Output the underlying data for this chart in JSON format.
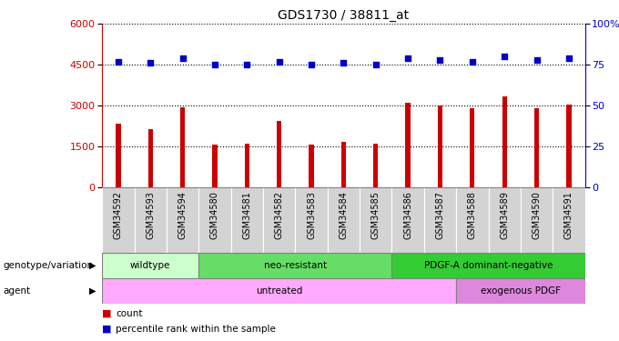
{
  "title": "GDS1730 / 38811_at",
  "samples": [
    "GSM34592",
    "GSM34593",
    "GSM34594",
    "GSM34580",
    "GSM34581",
    "GSM34582",
    "GSM34583",
    "GSM34584",
    "GSM34585",
    "GSM34586",
    "GSM34587",
    "GSM34588",
    "GSM34589",
    "GSM34590",
    "GSM34591"
  ],
  "counts": [
    2350,
    2150,
    2950,
    1580,
    1620,
    2450,
    1580,
    1680,
    1600,
    3100,
    3000,
    2920,
    3350,
    2900,
    3050
  ],
  "percentiles": [
    77,
    76,
    79,
    75,
    75,
    77,
    75,
    76,
    75,
    79,
    78,
    77,
    80,
    78,
    79
  ],
  "ylim_left": [
    0,
    6000
  ],
  "ylim_right": [
    0,
    100
  ],
  "yticks_left": [
    0,
    1500,
    3000,
    4500,
    6000
  ],
  "yticks_right": [
    0,
    25,
    50,
    75,
    100
  ],
  "bar_color": "#cc0000",
  "scatter_color": "#0000cc",
  "cell_bg": "#d3d3d3",
  "groups": {
    "genotype": [
      {
        "label": "wildtype",
        "start": 0,
        "end": 3,
        "color": "#ccffcc"
      },
      {
        "label": "neo-resistant",
        "start": 3,
        "end": 9,
        "color": "#66dd66"
      },
      {
        "label": "PDGF-A dominant-negative",
        "start": 9,
        "end": 15,
        "color": "#33cc33"
      }
    ],
    "agent": [
      {
        "label": "untreated",
        "start": 0,
        "end": 11,
        "color": "#ffaaff"
      },
      {
        "label": "exogenous PDGF",
        "start": 11,
        "end": 15,
        "color": "#dd88dd"
      }
    ]
  },
  "legend_labels": [
    "count",
    "percentile rank within the sample"
  ],
  "bar_width": 0.15
}
